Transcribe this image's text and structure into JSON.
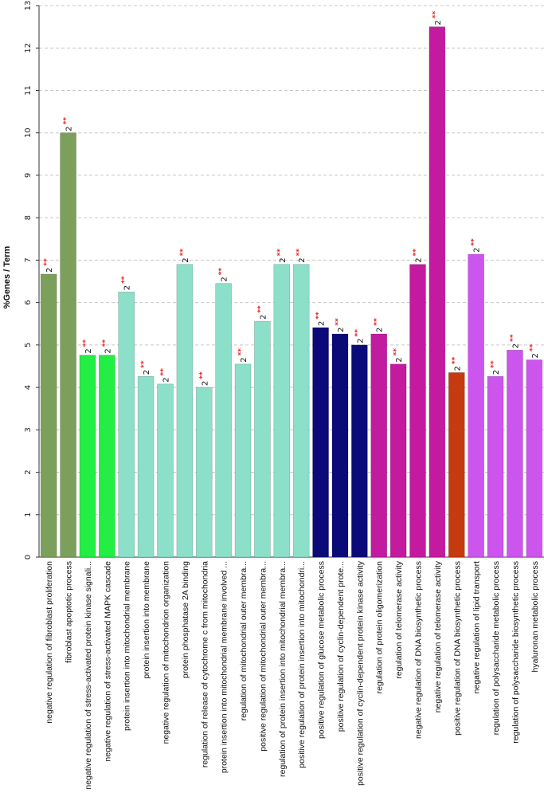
{
  "chart_data": {
    "type": "bar",
    "ylabel": "%Genes / Term",
    "ylim": [
      0,
      13
    ],
    "yticks": [
      0,
      1,
      2,
      3,
      4,
      5,
      6,
      7,
      8,
      9,
      10,
      11,
      12,
      13
    ],
    "grid": true,
    "bars": [
      {
        "category": "negative regulation of fibroblast proliferation",
        "value": 6.67,
        "count_label": "2",
        "sig_label": "**",
        "color": "#7ba05b"
      },
      {
        "category": "fibroblast apoptotic process",
        "value": 10.0,
        "count_label": "2",
        "sig_label": "**",
        "color": "#7ba05b"
      },
      {
        "category": "negative regulation of stress-activated protein kinase signali...",
        "value": 4.76,
        "count_label": "2",
        "sig_label": "**",
        "color": "#22ee44"
      },
      {
        "category": "negative regulation of stress-activated MAPK cascade",
        "value": 4.76,
        "count_label": "2",
        "sig_label": "**",
        "color": "#22ee44"
      },
      {
        "category": "protein insertion into mitochondrial membrane",
        "value": 6.25,
        "count_label": "2",
        "sig_label": "**",
        "color": "#8cdfc8"
      },
      {
        "category": "protein insertion into membrane",
        "value": 4.26,
        "count_label": "2",
        "sig_label": "**",
        "color": "#8cdfc8"
      },
      {
        "category": "negative regulation of mitochondrion organization",
        "value": 4.08,
        "count_label": "2",
        "sig_label": "**",
        "color": "#8cdfc8"
      },
      {
        "category": "protein phosphatase 2A binding",
        "value": 6.9,
        "count_label": "2",
        "sig_label": "**",
        "color": "#8cdfc8"
      },
      {
        "category": "regulation of release of cytochrome c from mitochondria",
        "value": 4.0,
        "count_label": "2",
        "sig_label": "**",
        "color": "#8cdfc8"
      },
      {
        "category": "protein insertion into mitochondrial membrane involved ...",
        "value": 6.45,
        "count_label": "2",
        "sig_label": "**",
        "color": "#8cdfc8"
      },
      {
        "category": "regulation of mitochondrial outer membra...",
        "value": 4.55,
        "count_label": "2",
        "sig_label": "**",
        "color": "#8cdfc8"
      },
      {
        "category": "positive regulation of mitochondrial outer membra...",
        "value": 5.56,
        "count_label": "2",
        "sig_label": "**",
        "color": "#8cdfc8"
      },
      {
        "category": "regulation of protein insertion into mitochondrial membra...",
        "value": 6.9,
        "count_label": "2",
        "sig_label": "**",
        "color": "#8cdfc8"
      },
      {
        "category": "positive regulation of protein insertion into mitochondri...",
        "value": 6.9,
        "count_label": "2",
        "sig_label": "**",
        "color": "#8cdfc8"
      },
      {
        "category": "positive regulation of glucose metabolic process",
        "value": 5.41,
        "count_label": "2",
        "sig_label": "**",
        "color": "#0a0a78"
      },
      {
        "category": "positive regulation of cyclin-dependent prote...",
        "value": 5.26,
        "count_label": "2",
        "sig_label": "**",
        "color": "#0a0a78"
      },
      {
        "category": "positive regulation of cyclin-dependent protein kinase activity",
        "value": 5.0,
        "count_label": "2",
        "sig_label": "**",
        "color": "#0a0a78"
      },
      {
        "category": "regulation of protein oligomerization",
        "value": 5.26,
        "count_label": "2",
        "sig_label": "**",
        "color": "#c41aa0"
      },
      {
        "category": "regulation of telomerase activity",
        "value": 4.55,
        "count_label": "2",
        "sig_label": "**",
        "color": "#c41aa0"
      },
      {
        "category": "negative regulation of DNA biosynthetic process",
        "value": 6.9,
        "count_label": "2",
        "sig_label": "**",
        "color": "#c41aa0"
      },
      {
        "category": "negative regulation of telomerase activity",
        "value": 12.5,
        "count_label": "2",
        "sig_label": "**",
        "color": "#c41aa0"
      },
      {
        "category": "positive regulation of DNA biosynthetic process",
        "value": 4.35,
        "count_label": "2",
        "sig_label": "**",
        "color": "#c63a10"
      },
      {
        "category": "negative regulation of lipid transport",
        "value": 7.14,
        "count_label": "2",
        "sig_label": "**",
        "color": "#cc55ee"
      },
      {
        "category": "regulation of polysaccharide metabolic process",
        "value": 4.26,
        "count_label": "2",
        "sig_label": "**",
        "color": "#cc55ee"
      },
      {
        "category": "regulation of polysaccharide biosynthetic process",
        "value": 4.88,
        "count_label": "2",
        "sig_label": "**",
        "color": "#cc55ee"
      },
      {
        "category": "hyaluronan metabolic process",
        "value": 4.65,
        "count_label": "2",
        "sig_label": "**",
        "color": "#cc55ee"
      }
    ]
  }
}
